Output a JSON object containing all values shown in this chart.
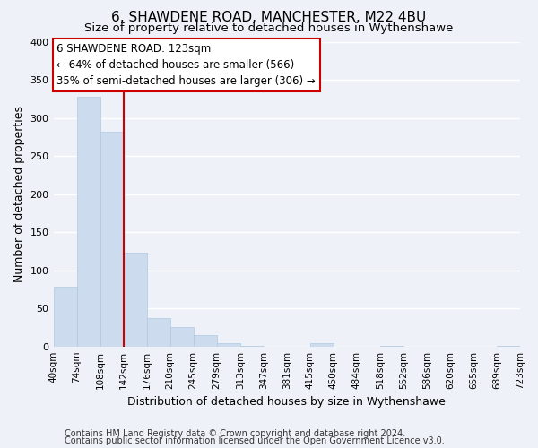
{
  "title": "6, SHAWDENE ROAD, MANCHESTER, M22 4BU",
  "subtitle": "Size of property relative to detached houses in Wythenshawe",
  "bar_values": [
    78,
    328,
    282,
    123,
    37,
    25,
    15,
    4,
    1,
    0,
    0,
    4,
    0,
    0,
    1,
    0,
    0,
    0,
    0,
    1
  ],
  "x_labels": [
    "40sqm",
    "74sqm",
    "108sqm",
    "142sqm",
    "176sqm",
    "210sqm",
    "245sqm",
    "279sqm",
    "313sqm",
    "347sqm",
    "381sqm",
    "415sqm",
    "450sqm",
    "484sqm",
    "518sqm",
    "552sqm",
    "586sqm",
    "620sqm",
    "655sqm",
    "689sqm",
    "723sqm"
  ],
  "bar_color": "#ccdcee",
  "bar_edge_color": "#b0c8e0",
  "ref_line_color": "#cc0000",
  "ref_line_x": 3.0,
  "ylabel": "Number of detached properties",
  "xlabel": "Distribution of detached houses by size in Wythenshawe",
  "ylim": [
    0,
    400
  ],
  "yticks": [
    0,
    50,
    100,
    150,
    200,
    250,
    300,
    350,
    400
  ],
  "annotation_title": "6 SHAWDENE ROAD: 123sqm",
  "annotation_line1": "← 64% of detached houses are smaller (566)",
  "annotation_line2": "35% of semi-detached houses are larger (306) →",
  "footer1": "Contains HM Land Registry data © Crown copyright and database right 2024.",
  "footer2": "Contains public sector information licensed under the Open Government Licence v3.0.",
  "background_color": "#eef2f8",
  "plot_bg_color": "#eef2f8",
  "grid_color": "#ffffff",
  "title_fontsize": 11,
  "subtitle_fontsize": 9.5,
  "axis_label_fontsize": 9,
  "tick_fontsize": 7.5,
  "annotation_fontsize": 8.5,
  "footer_fontsize": 7,
  "annotation_box_color": "#ffffff",
  "annotation_box_edge": "#cc0000"
}
